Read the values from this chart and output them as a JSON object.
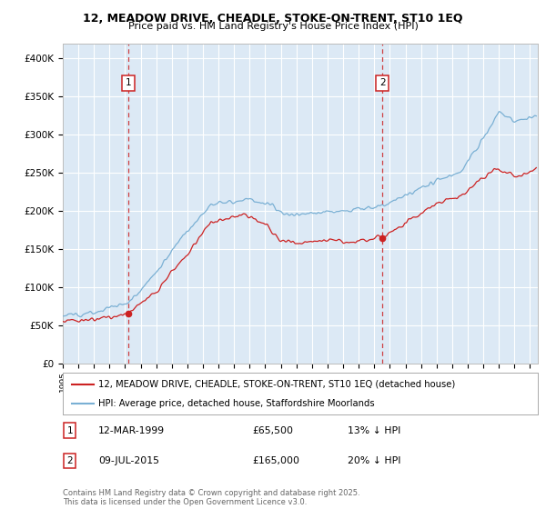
{
  "title1": "12, MEADOW DRIVE, CHEADLE, STOKE-ON-TRENT, ST10 1EQ",
  "title2": "Price paid vs. HM Land Registry's House Price Index (HPI)",
  "fig_bg_color": "#ffffff",
  "plot_bg_color": "#dce9f5",
  "grid_color": "#ffffff",
  "red_color": "#cc2222",
  "blue_color": "#7ab0d4",
  "red_line_label": "12, MEADOW DRIVE, CHEADLE, STOKE-ON-TRENT, ST10 1EQ (detached house)",
  "blue_line_label": "HPI: Average price, detached house, Staffordshire Moorlands",
  "marker1_date_x": 1999.19,
  "marker1_text": "12-MAR-1999",
  "marker1_price": "£65,500",
  "marker1_hpi": "13% ↓ HPI",
  "marker2_date_x": 2015.52,
  "marker2_text": "09-JUL-2015",
  "marker2_price": "£165,000",
  "marker2_hpi": "20% ↓ HPI",
  "footnote": "Contains HM Land Registry data © Crown copyright and database right 2025.\nThis data is licensed under the Open Government Licence v3.0.",
  "ylim": [
    0,
    420000
  ],
  "xlim_start": 1995.0,
  "xlim_end": 2025.5,
  "marker1_y_red": 65500,
  "marker2_y_red": 165000
}
